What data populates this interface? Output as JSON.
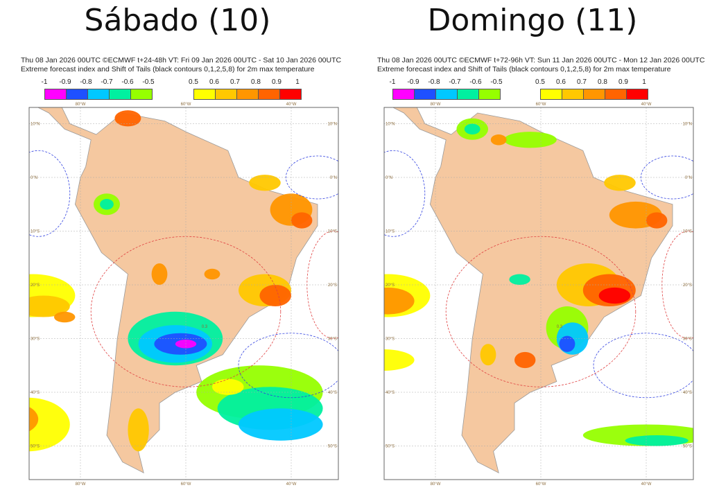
{
  "panels": [
    {
      "title": "Sábado (10)",
      "header_line1": "Thu 08 Jan 2026 00UTC ©ECMWF t+24-48h  VT: Fri 09 Jan 2026 00UTC - Sat 10 Jan 2026 00UTC",
      "header_line2": "Extreme forecast index and Shift of Tails (black contours 0,1,2,5,8) for 2m max temperature"
    },
    {
      "title": "Domingo (11)",
      "header_line1": "Thu 08 Jan 2026 00UTC ©ECMWF t+72-96h  VT: Sun 11 Jan 2026 00UTC - Mon 12 Jan 2026 00UTC",
      "header_line2": "Extreme forecast index and Shift of Tails (black contours 0,1,2,5,8) for 2m max temperature"
    }
  ],
  "legend": {
    "negative": {
      "ticks": [
        "-1",
        "-0.9",
        "-0.8",
        "-0.7",
        "-0.6",
        "-0.5"
      ],
      "colors": [
        "#ff00ff",
        "#1e50ff",
        "#00c8ff",
        "#00f0a0",
        "#96ff00"
      ]
    },
    "positive": {
      "ticks": [
        "0.5",
        "0.6",
        "0.7",
        "0.8",
        "0.9",
        "1"
      ],
      "colors": [
        "#ffff00",
        "#ffc800",
        "#ff9600",
        "#ff6400",
        "#ff0000"
      ]
    }
  },
  "axes": {
    "lon_labels": [
      "80°W",
      "60°W",
      "40°W"
    ],
    "lat_labels": [
      "10°N",
      "0°N",
      "10°S",
      "20°S",
      "30°S",
      "40°S",
      "50°S"
    ]
  },
  "contour_label": "0.3",
  "colors": {
    "land": "#f5c8a0",
    "ocean": "#ffffff",
    "border": "#999999"
  }
}
